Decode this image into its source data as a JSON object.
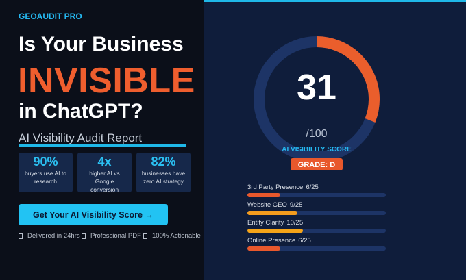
{
  "brand": "GEOAUDIT PRO",
  "headline": {
    "line1": "Is Your Business",
    "highlight": "INVISIBLE",
    "line3": "in ChatGPT?"
  },
  "subtitle": "AI Visibility Audit Report",
  "stats": [
    {
      "value": "90%",
      "label": "buyers use AI to research"
    },
    {
      "value": "4x",
      "label": "higher AI vs Google conversion"
    },
    {
      "value": "82%",
      "label": "businesses have zero AI strategy"
    }
  ],
  "cta": "Get Your AI Visibility Score →",
  "features": [
    "Delivered in 24hrs",
    "Professional PDF",
    "100% Actionable"
  ],
  "gauge": {
    "score": 31,
    "max": 100,
    "max_label": "/100",
    "caption": "AI VISIBILITY SCORE",
    "grade": "GRADE: D"
  },
  "metrics": [
    {
      "name": "3rd Party Presence",
      "score_text": "6/25",
      "value": 6,
      "max": 25,
      "color": "#e8582c"
    },
    {
      "name": "Website GEO",
      "score_text": "9/25",
      "value": 9,
      "max": 25,
      "color": "#f39c1e"
    },
    {
      "name": "Entity Clarity",
      "score_text": "10/25",
      "value": 10,
      "max": 25,
      "color": "#f5a418"
    },
    {
      "name": "Online Presence",
      "score_text": "6/25",
      "value": 6,
      "max": 25,
      "color": "#e8582c"
    }
  ]
}
